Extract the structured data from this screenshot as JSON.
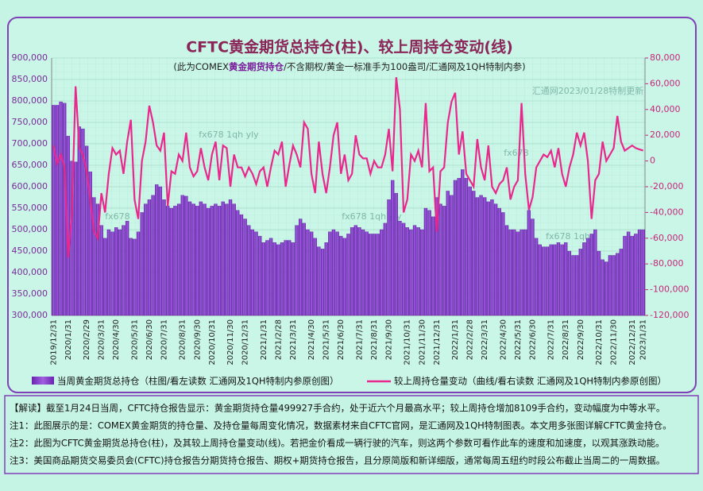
{
  "chart_data": {
    "type": "bar",
    "title": "CFTC黄金期货总持仓(柱)、较上周持仓变动(线)",
    "subtitle": [
      "(此为COMEX",
      "黄金期货持仓",
      "/不含期权/黄金一标准手为100盎司/汇通网及1QH特制内参)"
    ],
    "watermarks": [
      "汇通网2023/01/28特制更新",
      "fx678 1qh yly",
      "fx678",
      "fx678 1qh  yly",
      "fx678",
      "fx678    1qh"
    ],
    "categories": [
      "2019/12/31",
      null,
      null,
      null,
      "2020/1/31",
      null,
      null,
      null,
      null,
      "2020/2/29",
      null,
      null,
      null,
      "2020/3/31",
      null,
      null,
      null,
      "2020/4/30",
      null,
      null,
      null,
      null,
      "2020/5/31",
      null,
      null,
      null,
      "2020/6/30",
      null,
      null,
      null,
      "2020/7/31",
      null,
      null,
      null,
      null,
      "2020/8/31",
      null,
      null,
      null,
      "2020/9/30",
      null,
      null,
      null,
      "2020/10/31",
      null,
      null,
      null,
      null,
      "2020/11/30",
      null,
      null,
      null,
      "2020/12/31",
      null,
      null,
      null,
      null,
      "2021/1/31",
      null,
      null,
      null,
      "2021/2/28",
      null,
      null,
      null,
      "2021/3/31",
      null,
      null,
      null,
      null,
      "2021/4/30",
      null,
      null,
      null,
      "2021/5/31",
      null,
      null,
      null,
      "2021/6/30",
      null,
      null,
      null,
      null,
      "2021/7/31",
      null,
      null,
      null,
      "2021/8/31",
      null,
      null,
      null,
      "2021/9/30",
      null,
      null,
      null,
      null,
      "2021/10/31",
      null,
      null,
      null,
      "2021/11/30",
      null,
      null,
      null,
      "2021/12/31",
      null,
      null,
      null,
      null,
      "2022/1/31",
      null,
      null,
      null,
      "2022/2/28",
      null,
      null,
      null,
      "2022/3/31",
      null,
      null,
      null,
      null,
      "2022/4/30",
      null,
      null,
      null,
      "2022/5/31",
      null,
      null,
      null,
      "2022/6/30",
      null,
      null,
      null,
      null,
      "2022/7/31",
      null,
      null,
      null,
      "2022/8/31",
      null,
      null,
      null,
      "2022/9/30",
      null,
      null,
      null,
      null,
      "2022/10/31",
      null,
      null,
      null,
      "2022/11/30",
      null,
      null,
      null,
      null,
      "2022/12/31",
      null,
      null,
      "2023/1/31"
    ],
    "series": [
      {
        "name": "当周黄金期货总持仓（柱图/看左读数 汇通网及1QH特制内参原创图）",
        "type": "bar",
        "axis": "y",
        "color": "#8a3ed0",
        "values": [
          790000,
          790000,
          798000,
          795000,
          718000,
          660000,
          658000,
          740000,
          735000,
          695000,
          635000,
          575000,
          560000,
          510000,
          480000,
          500000,
          495000,
          505000,
          500000,
          510000,
          520000,
          480000,
          478000,
          495000,
          540000,
          560000,
          570000,
          580000,
          605000,
          600000,
          570000,
          555000,
          550000,
          555000,
          560000,
          580000,
          578000,
          565000,
          560000,
          555000,
          565000,
          560000,
          550000,
          555000,
          560000,
          555000,
          565000,
          560000,
          570000,
          560000,
          545000,
          535000,
          525000,
          510000,
          500000,
          495000,
          485000,
          470000,
          475000,
          480000,
          470000,
          465000,
          470000,
          475000,
          475000,
          470000,
          510000,
          525000,
          515000,
          500000,
          495000,
          480000,
          460000,
          455000,
          470000,
          495000,
          500000,
          495000,
          485000,
          480000,
          490000,
          505000,
          510000,
          505000,
          500000,
          495000,
          490000,
          490000,
          490000,
          500000,
          515000,
          570000,
          615000,
          585000,
          520000,
          515000,
          505000,
          500000,
          510000,
          505000,
          500000,
          550000,
          545000,
          530000,
          575000,
          560000,
          555000,
          590000,
          580000,
          615000,
          620000,
          640000,
          620000,
          600000,
          590000,
          575000,
          580000,
          575000,
          565000,
          570000,
          560000,
          550000,
          540000,
          510000,
          500000,
          500000,
          495000,
          500000,
          500000,
          545000,
          525000,
          480000,
          465000,
          460000,
          460000,
          465000,
          465000,
          470000,
          465000,
          470000,
          450000,
          440000,
          440000,
          455000,
          470000,
          480000,
          490000,
          500000,
          450000,
          430000,
          425000,
          440000,
          440000,
          445000,
          455000,
          485000,
          495000,
          485000,
          490000,
          500000,
          499927
        ]
      },
      {
        "name": "较上周持仓量变动（曲线/看右读数 汇通网及1QH特制内参原创图）",
        "type": "line",
        "axis": "y2",
        "color": "#e8288c",
        "values": [
          12000,
          -2000,
          5000,
          -5000,
          -75000,
          -40000,
          58000,
          10000,
          5000,
          -8000,
          -30000,
          -55000,
          -60000,
          -25000,
          -40000,
          -10000,
          10000,
          5000,
          8000,
          -10000,
          15000,
          32000,
          -30000,
          -45000,
          0,
          15000,
          43000,
          30000,
          12000,
          8000,
          22000,
          -35000,
          -8000,
          -10000,
          5000,
          0,
          22000,
          -5000,
          -12000,
          -8000,
          10000,
          -5000,
          -15000,
          5000,
          15000,
          -15000,
          12000,
          10000,
          -20000,
          5000,
          -5000,
          -5000,
          -12000,
          -5000,
          -10000,
          -18000,
          -8000,
          -5000,
          -20000,
          -5000,
          8000,
          5000,
          15000,
          -20000,
          -3000,
          12000,
          5000,
          -5000,
          30000,
          25000,
          -10000,
          -25000,
          15000,
          -10000,
          -25000,
          -5000,
          20000,
          30000,
          -10000,
          5000,
          -15000,
          -10000,
          20000,
          5000,
          2000,
          2000,
          -10000,
          0,
          -5000,
          -5000,
          5000,
          25000,
          -8000,
          65000,
          40000,
          -40000,
          -30000,
          5000,
          0,
          8000,
          -5000,
          45000,
          -8000,
          -5000,
          -55000,
          -8000,
          -5000,
          30000,
          46000,
          53000,
          5000,
          23000,
          -10000,
          -15000,
          -20000,
          17000,
          -5000,
          -15000,
          12000,
          -20000,
          -25000,
          -18000,
          -15000,
          -5000,
          -30000,
          -20000,
          -15000,
          45000,
          -10000,
          -38000,
          -28000,
          -5000,
          0,
          5000,
          3000,
          8000,
          -5000,
          10000,
          -10000,
          -20000,
          -5000,
          5000,
          22000,
          12000,
          22000,
          0,
          -45000,
          -15000,
          -10000,
          15000,
          0,
          5000,
          10000,
          35000,
          15000,
          8000,
          10000,
          12000,
          10000,
          9000,
          8109
        ]
      }
    ],
    "ylim": [
      300000,
      900000
    ],
    "yticks": [
      {
        "value": 300000,
        "label": "300,000"
      },
      {
        "value": 350000,
        "label": "350,000"
      },
      {
        "value": 400000,
        "label": "400,000"
      },
      {
        "value": 450000,
        "label": "450,000"
      },
      {
        "value": 500000,
        "label": "500,000"
      },
      {
        "value": 550000,
        "label": "550,000"
      },
      {
        "value": 600000,
        "label": "600,000"
      },
      {
        "value": 650000,
        "label": "650,000"
      },
      {
        "value": 700000,
        "label": "700,000"
      },
      {
        "value": 750000,
        "label": "750,000"
      },
      {
        "value": 800000,
        "label": "800,000"
      },
      {
        "value": 850000,
        "label": "850,000"
      },
      {
        "value": 900000,
        "label": "900,000"
      }
    ],
    "y2lim": [
      -120000,
      80000
    ],
    "y2ticks": [
      {
        "value": -120000,
        "label": "-120,000"
      },
      {
        "value": -100000,
        "label": "-100,000"
      },
      {
        "value": -80000,
        "label": "-80,000"
      },
      {
        "value": -60000,
        "label": "-60,000"
      },
      {
        "value": -40000,
        "label": "-40,000"
      },
      {
        "value": -20000,
        "label": "-20,000"
      },
      0,
      {
        "value": 20000,
        "label": "20,000"
      },
      {
        "value": 40000,
        "label": "40,000"
      },
      {
        "value": 60000,
        "label": "60,000"
      },
      {
        "value": 80000,
        "label": "80,000"
      }
    ],
    "grid": true
  },
  "notes": [
    "【解读】截至1月24日当周，CFTC持仓报告显示：黄金期货持仓量499927手合约，处于近六个月最高水平；较上周持仓增加8109手合约，变动幅度为中等水平。",
    "注1：此图展示的是：COMEX黄金期货的持仓量、及持仓量每周变化情况，数据素材来自CFTC官网，是汇通网及1QH特制图表。本文用多张图详解CFTC黄金持仓。",
    "注2：此图为CFTC黄金期货总持仓(柱)，及其较上周持仓量变动(线)。若把金价看成一辆行驶的汽车，则这两个参数可看作此车的速度和加速度，以观其涨跌动能。",
    "注3：美国商品期货交易委员会(CFTC)持仓报告分期货持仓报告、期权+期货持仓报告，且分原简版和新详细版，通常每周五纽约时段公布截止当周二的一周数据。"
  ]
}
